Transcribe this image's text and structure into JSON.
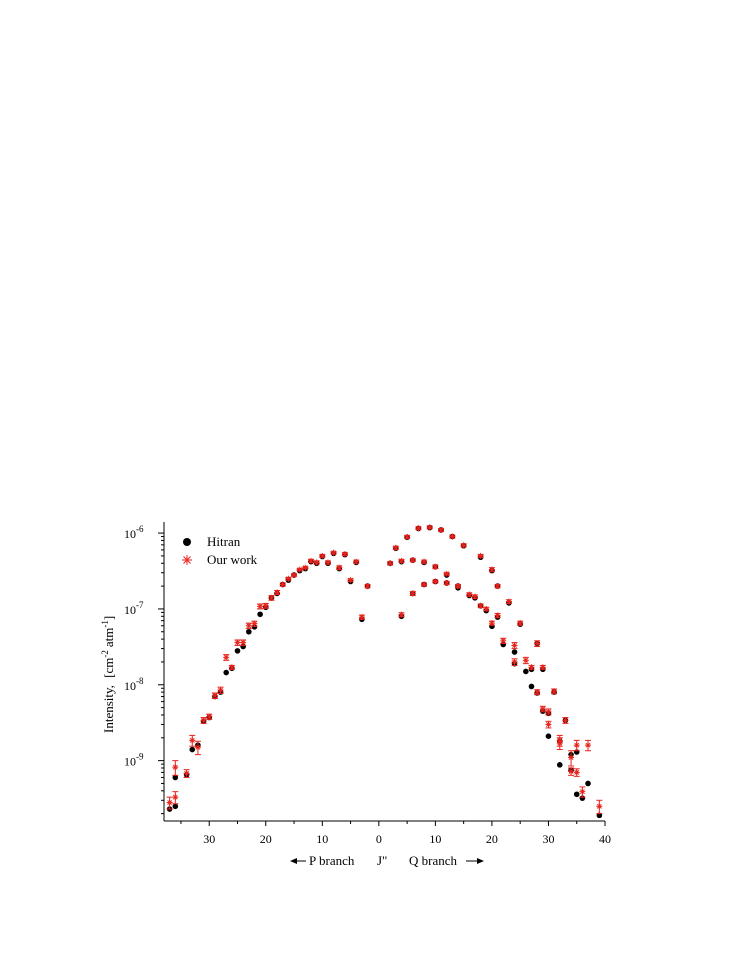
{
  "chart_data": {
    "type": "scatter",
    "ylabel_text": "Intensity,",
    "ylabel_units": "[cm",
    "ylabel_exp1": "-2",
    "ylabel_mid": "atm",
    "ylabel_exp2": "-1",
    "ylabel_end": "]",
    "x_axis_caption": {
      "p_branch": "P branch",
      "j": "J\"",
      "q_branch": "Q branch"
    },
    "yscale": "log",
    "ylim": [
      1.6e-10,
      1.4e-06
    ],
    "xlim": [
      -38,
      40
    ],
    "x_tick_labels": [
      {
        "x": -30,
        "label": "30"
      },
      {
        "x": -20,
        "label": "20"
      },
      {
        "x": -10,
        "label": "10"
      },
      {
        "x": 0,
        "label": "0"
      },
      {
        "x": 10,
        "label": "10"
      },
      {
        "x": 20,
        "label": "20"
      },
      {
        "x": 30,
        "label": "30"
      },
      {
        "x": 40,
        "label": "40"
      }
    ],
    "y_tick_labels": [
      {
        "y": 1e-09,
        "base": "10",
        "exp": "-9"
      },
      {
        "y": 1e-08,
        "base": "10",
        "exp": "-8"
      },
      {
        "y": 1e-07,
        "base": "10",
        "exp": "-7"
      },
      {
        "y": 1e-06,
        "base": "10",
        "exp": "-6"
      }
    ],
    "legend": [
      {
        "name": "Hitran",
        "marker": "circle",
        "color": "#000000"
      },
      {
        "name": "Our work",
        "marker": "asterisk",
        "color": "#e8231c"
      }
    ],
    "legend_position": "top-left",
    "grid": false,
    "series": [
      {
        "name": "Hitran",
        "color": "#000000",
        "points": [
          [
            -37,
            2.3e-10
          ],
          [
            -36,
            2.5e-10
          ],
          [
            -36,
            6e-10
          ],
          [
            -34,
            6.5e-10
          ],
          [
            -33,
            1.4e-09
          ],
          [
            -32,
            1.6e-09
          ],
          [
            -31,
            3.3e-09
          ],
          [
            -30,
            3.7e-09
          ],
          [
            -29,
            7e-09
          ],
          [
            -28,
            8e-09
          ],
          [
            -27,
            1.45e-08
          ],
          [
            -26,
            1.65e-08
          ],
          [
            -25,
            2.8e-08
          ],
          [
            -24,
            3.2e-08
          ],
          [
            -23,
            5e-08
          ],
          [
            -22,
            5.8e-08
          ],
          [
            -21,
            8.5e-08
          ],
          [
            -20,
            1.05e-07
          ],
          [
            -19,
            1.4e-07
          ],
          [
            -18,
            1.6e-07
          ],
          [
            -17,
            2.1e-07
          ],
          [
            -16,
            2.4e-07
          ],
          [
            -15,
            2.8e-07
          ],
          [
            -14,
            3.2e-07
          ],
          [
            -13,
            3.4e-07
          ],
          [
            -12,
            4.2e-07
          ],
          [
            -11,
            4e-07
          ],
          [
            -10,
            4.9e-07
          ],
          [
            -9,
            4e-07
          ],
          [
            -8,
            5.4e-07
          ],
          [
            -7,
            3.4e-07
          ],
          [
            -6,
            5.2e-07
          ],
          [
            -5,
            2.3e-07
          ],
          [
            -4,
            4.1e-07
          ],
          [
            -3,
            7.3e-08
          ],
          [
            -2,
            2e-07
          ],
          [
            2,
            4e-07
          ],
          [
            3,
            6.3e-07
          ],
          [
            4,
            8e-08
          ],
          [
            4,
            4.2e-07
          ],
          [
            5,
            8.8e-07
          ],
          [
            6,
            1.6e-07
          ],
          [
            6,
            4.4e-07
          ],
          [
            7,
            1.15e-06
          ],
          [
            8,
            2.1e-07
          ],
          [
            8,
            4.1e-07
          ],
          [
            9,
            1.18e-06
          ],
          [
            10,
            2.3e-07
          ],
          [
            10,
            3.6e-07
          ],
          [
            11,
            1.1e-06
          ],
          [
            12,
            2.2e-07
          ],
          [
            12,
            2.8e-07
          ],
          [
            13,
            9e-07
          ],
          [
            14,
            1.9e-07
          ],
          [
            14,
            2e-07
          ],
          [
            15,
            6.8e-07
          ],
          [
            16,
            1.5e-07
          ],
          [
            17,
            1.4e-07
          ],
          [
            18,
            4.8e-07
          ],
          [
            18,
            1.1e-07
          ],
          [
            19,
            9.5e-08
          ],
          [
            20,
            5.9e-08
          ],
          [
            20,
            3.2e-07
          ],
          [
            21,
            7.8e-08
          ],
          [
            21,
            2e-07
          ],
          [
            22,
            3.4e-08
          ],
          [
            23,
            1.2e-07
          ],
          [
            24,
            2.7e-08
          ],
          [
            24,
            1.9e-08
          ],
          [
            25,
            6.3e-08
          ],
          [
            26,
            1.5e-08
          ],
          [
            27,
            1.6e-08
          ],
          [
            27,
            9.5e-09
          ],
          [
            28,
            3.5e-08
          ],
          [
            28,
            7.8e-09
          ],
          [
            29,
            1.6e-08
          ],
          [
            29,
            4.5e-09
          ],
          [
            30,
            4.2e-09
          ],
          [
            30,
            2.1e-09
          ],
          [
            31,
            8e-09
          ],
          [
            32,
            1.8e-09
          ],
          [
            32,
            8.8e-10
          ],
          [
            33,
            3.4e-09
          ],
          [
            34,
            1.2e-09
          ],
          [
            34,
            7.5e-10
          ],
          [
            35,
            3.6e-10
          ],
          [
            35,
            1.3e-09
          ],
          [
            36,
            3.2e-10
          ],
          [
            37,
            5e-10
          ],
          [
            39,
            1.9e-10
          ]
        ]
      },
      {
        "name": "Our work",
        "color": "#e8231c",
        "points": [
          [
            -37,
            2.8e-10,
            5e-11
          ],
          [
            -36,
            3.3e-10,
            6e-11
          ],
          [
            -36,
            8.2e-10,
            1.8e-10
          ],
          [
            -34,
            6.8e-10,
            8e-11
          ],
          [
            -33,
            1.85e-09,
            3e-10
          ],
          [
            -32,
            1.5e-09,
            3e-10
          ],
          [
            -31,
            3.4e-09,
            3e-10
          ],
          [
            -30,
            3.8e-09,
            3e-10
          ],
          [
            -29,
            7.2e-09,
            6e-10
          ],
          [
            -28,
            8.5e-09,
            8e-10
          ],
          [
            -27,
            2.3e-08,
            2e-09
          ],
          [
            -26,
            1.7e-08,
            1e-09
          ],
          [
            -25,
            3.6e-08,
            3e-09
          ],
          [
            -24,
            3.6e-08,
            3e-09
          ],
          [
            -23,
            6e-08,
            5e-09
          ],
          [
            -22,
            6.4e-08,
            5e-09
          ],
          [
            -21,
            1.08e-07,
            8e-09
          ],
          [
            -20,
            1.1e-07,
            8e-09
          ],
          [
            -19,
            1.4e-07,
            1e-08
          ],
          [
            -18,
            1.65e-07,
            1e-08
          ],
          [
            -17,
            2.1e-07,
            1e-08
          ],
          [
            -16,
            2.5e-07,
            1e-08
          ],
          [
            -15,
            2.8e-07,
            1e-08
          ],
          [
            -14,
            3.3e-07,
            1e-08
          ],
          [
            -13,
            3.5e-07,
            1e-08
          ],
          [
            -12,
            4.3e-07,
            2e-08
          ],
          [
            -11,
            4.1e-07,
            2e-08
          ],
          [
            -10,
            5e-07,
            2e-08
          ],
          [
            -9,
            4.1e-07,
            2e-08
          ],
          [
            -8,
            5.5e-07,
            2e-08
          ],
          [
            -7,
            3.5e-07,
            2e-08
          ],
          [
            -6,
            5.3e-07,
            2e-08
          ],
          [
            -5,
            2.4e-07,
            1e-08
          ],
          [
            -4,
            4.2e-07,
            2e-08
          ],
          [
            -3,
            7.8e-08,
            5e-09
          ],
          [
            -2,
            2e-07,
            1e-08
          ],
          [
            2,
            4e-07,
            2e-08
          ],
          [
            3,
            6.4e-07,
            3e-08
          ],
          [
            4,
            8.4e-08,
            5e-09
          ],
          [
            4,
            4.3e-07,
            2e-08
          ],
          [
            5,
            8.9e-07,
            4e-08
          ],
          [
            6,
            1.6e-07,
            1e-08
          ],
          [
            6,
            4.4e-07,
            2e-08
          ],
          [
            7,
            1.16e-06,
            5e-08
          ],
          [
            8,
            2.1e-07,
            1e-08
          ],
          [
            8,
            4.2e-07,
            2e-08
          ],
          [
            9,
            1.19e-06,
            5e-08
          ],
          [
            10,
            2.3e-07,
            1e-08
          ],
          [
            10,
            3.6e-07,
            2e-08
          ],
          [
            11,
            1.1e-06,
            5e-08
          ],
          [
            12,
            2.2e-07,
            1e-08
          ],
          [
            12,
            2.9e-07,
            1e-08
          ],
          [
            13,
            9e-07,
            4e-08
          ],
          [
            14,
            2e-07,
            1e-08
          ],
          [
            14,
            2e-07,
            1e-08
          ],
          [
            15,
            6.9e-07,
            3e-08
          ],
          [
            16,
            1.55e-07,
            8e-09
          ],
          [
            17,
            1.45e-07,
            8e-09
          ],
          [
            18,
            5e-07,
            2e-08
          ],
          [
            18,
            1.1e-07,
            6e-09
          ],
          [
            19,
            1e-07,
            5e-09
          ],
          [
            20,
            6.5e-08,
            4e-09
          ],
          [
            20,
            3.3e-07,
            2e-08
          ],
          [
            21,
            8.2e-08,
            5e-09
          ],
          [
            21,
            2e-07,
            1e-08
          ],
          [
            22,
            3.8e-08,
            3e-09
          ],
          [
            23,
            1.25e-07,
            7e-09
          ],
          [
            24,
            3.3e-08,
            3e-09
          ],
          [
            24,
            2e-08,
            2e-09
          ],
          [
            25,
            6.5e-08,
            4e-09
          ],
          [
            26,
            2.1e-08,
            2e-09
          ],
          [
            27,
            1.7e-08,
            1e-09
          ],
          [
            28,
            3.5e-08,
            3e-09
          ],
          [
            28,
            8e-09,
            6e-10
          ],
          [
            29,
            1.7e-08,
            1e-09
          ],
          [
            29,
            4.8e-09,
            4e-10
          ],
          [
            30,
            4.4e-09,
            4e-10
          ],
          [
            30,
            3e-09,
            3e-10
          ],
          [
            31,
            8.2e-09,
            6e-10
          ],
          [
            32,
            1.85e-09,
            3e-10
          ],
          [
            32,
            1.7e-09,
            3e-10
          ],
          [
            33,
            3.4e-09,
            3e-10
          ],
          [
            34,
            1.1e-09,
            2.5e-10
          ],
          [
            34,
            7.2e-10,
            8e-11
          ],
          [
            35,
            1.6e-09,
            2.5e-10
          ],
          [
            35,
            7e-10,
            8e-11
          ],
          [
            36,
            3.9e-10,
            6e-11
          ],
          [
            37,
            1.6e-09,
            2.5e-10
          ],
          [
            39,
            2.5e-10,
            5e-11
          ]
        ]
      }
    ]
  }
}
